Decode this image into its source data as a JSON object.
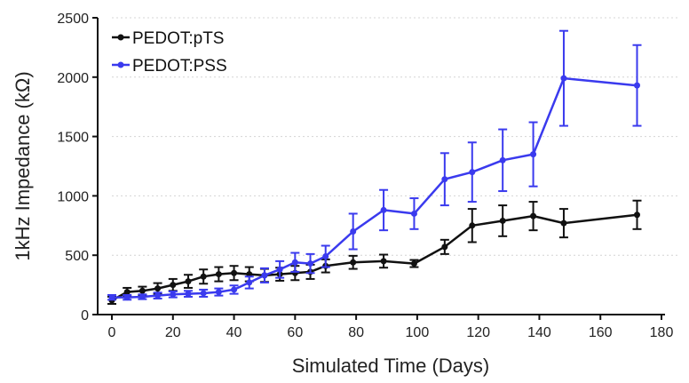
{
  "chart_data": {
    "type": "line",
    "xlabel": "Simulated Time (Days)",
    "ylabel": "1kHz Impedance (kΩ)",
    "xlim": [
      0,
      180
    ],
    "ylim": [
      0,
      2500
    ],
    "xticks": [
      0,
      20,
      40,
      60,
      80,
      100,
      120,
      140,
      160,
      180
    ],
    "yticks": [
      0,
      500,
      1000,
      1500,
      2000,
      2500
    ],
    "grid": "horizontal-dashed",
    "legend_placement": "top-left",
    "series": [
      {
        "name": "PEDOT:pTS",
        "color": "#111111",
        "x": [
          0,
          5,
          10,
          15,
          20,
          25,
          30,
          35,
          40,
          45,
          50,
          55,
          60,
          65,
          70,
          79,
          89,
          99,
          109,
          118,
          128,
          138,
          148,
          172
        ],
        "y": [
          120,
          190,
          200,
          220,
          250,
          280,
          320,
          340,
          350,
          340,
          330,
          340,
          350,
          360,
          410,
          440,
          450,
          430,
          570,
          750,
          790,
          830,
          770,
          840
        ],
        "err": [
          30,
          35,
          35,
          45,
          50,
          55,
          60,
          60,
          60,
          60,
          55,
          55,
          60,
          60,
          55,
          55,
          55,
          30,
          60,
          140,
          130,
          120,
          120,
          120
        ]
      },
      {
        "name": "PEDOT:PSS",
        "color": "#3a3aee",
        "x": [
          0,
          5,
          10,
          15,
          20,
          25,
          30,
          35,
          40,
          45,
          50,
          55,
          60,
          65,
          70,
          79,
          89,
          99,
          109,
          118,
          128,
          138,
          148,
          172
        ],
        "y": [
          145,
          145,
          150,
          160,
          170,
          175,
          180,
          190,
          210,
          270,
          330,
          380,
          440,
          430,
          490,
          700,
          880,
          850,
          1140,
          1200,
          1300,
          1350,
          1990,
          1930
        ],
        "err": [
          20,
          20,
          20,
          25,
          25,
          25,
          30,
          30,
          35,
          50,
          60,
          70,
          80,
          80,
          90,
          150,
          170,
          130,
          220,
          250,
          260,
          270,
          400,
          340
        ]
      }
    ]
  }
}
